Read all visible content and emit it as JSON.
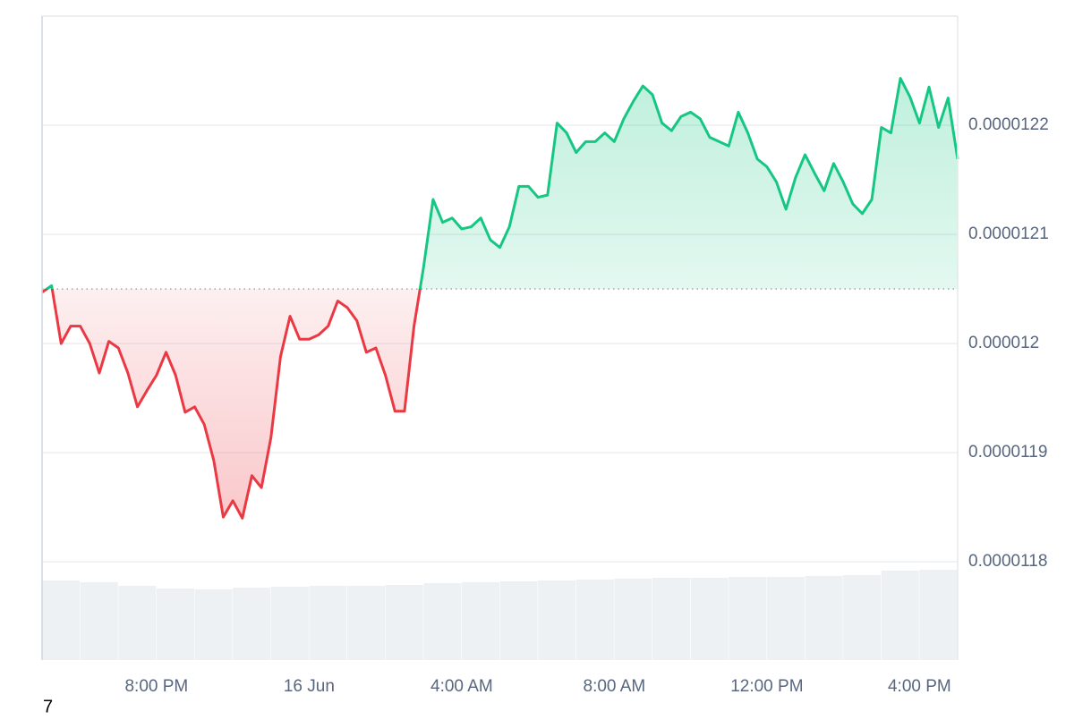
{
  "chart_data": {
    "type": "area",
    "x": [
      17,
      17.25,
      17.5,
      17.75,
      18,
      18.25,
      18.5,
      18.75,
      19,
      19.25,
      19.5,
      19.75,
      20,
      20.25,
      20.5,
      20.75,
      21,
      21.25,
      21.5,
      21.75,
      22,
      22.25,
      22.5,
      22.75,
      23,
      23.25,
      23.5,
      23.75,
      24,
      24.25,
      24.5,
      24.75,
      25,
      25.25,
      25.5,
      25.75,
      26,
      26.25,
      26.5,
      26.75,
      27,
      27.25,
      27.5,
      27.75,
      28,
      28.25,
      28.5,
      28.75,
      29,
      29.25,
      29.5,
      29.75,
      30,
      30.25,
      30.5,
      30.75,
      31,
      31.25,
      31.5,
      31.75,
      32,
      32.25,
      32.5,
      32.75,
      33,
      33.25,
      33.5,
      33.75,
      34,
      34.25,
      34.5,
      34.75,
      35,
      35.25,
      35.5,
      35.75,
      36,
      36.25,
      36.5,
      36.75,
      37,
      37.25,
      37.5,
      37.75,
      38,
      38.25,
      38.5,
      38.75,
      39,
      39.25,
      39.5,
      39.75,
      40,
      40.25,
      40.5,
      40.75,
      41
    ],
    "values": [
      1.2047e-05,
      1.2053e-05,
      1.2e-05,
      1.2016e-05,
      1.2016e-05,
      1.2e-05,
      1.1973e-05,
      1.2002e-05,
      1.1996e-05,
      1.1973e-05,
      1.1942e-05,
      1.1957e-05,
      1.1971e-05,
      1.1992e-05,
      1.1971e-05,
      1.1937e-05,
      1.1942e-05,
      1.1926e-05,
      1.1893e-05,
      1.1841e-05,
      1.1856e-05,
      1.184e-05,
      1.1879e-05,
      1.1868e-05,
      1.1914e-05,
      1.1988e-05,
      1.2025e-05,
      1.2004e-05,
      1.2004e-05,
      1.2008e-05,
      1.2016e-05,
      1.2039e-05,
      1.2033e-05,
      1.2021e-05,
      1.1992e-05,
      1.1996e-05,
      1.1971e-05,
      1.1938e-05,
      1.1938e-05,
      1.2016e-05,
      1.207e-05,
      1.2132e-05,
      1.2111e-05,
      1.2115e-05,
      1.2105e-05,
      1.2107e-05,
      1.2115e-05,
      1.2095e-05,
      1.2088e-05,
      1.2107e-05,
      1.2144e-05,
      1.2144e-05,
      1.2134e-05,
      1.2136e-05,
      1.2202e-05,
      1.2193e-05,
      1.2175e-05,
      1.2185e-05,
      1.2185e-05,
      1.2193e-05,
      1.2185e-05,
      1.2206e-05,
      1.2222e-05,
      1.2236e-05,
      1.2228e-05,
      1.2202e-05,
      1.2195e-05,
      1.2208e-05,
      1.2212e-05,
      1.2206e-05,
      1.2189e-05,
      1.2185e-05,
      1.2181e-05,
      1.2212e-05,
      1.2193e-05,
      1.2169e-05,
      1.2162e-05,
      1.2148e-05,
      1.2123e-05,
      1.2152e-05,
      1.2173e-05,
      1.2156e-05,
      1.214e-05,
      1.2165e-05,
      1.2148e-05,
      1.2128e-05,
      1.2119e-05,
      1.2132e-05,
      1.2198e-05,
      1.2193e-05,
      1.2243e-05,
      1.2226e-05,
      1.2202e-05,
      1.2235e-05,
      1.2198e-05,
      1.2225e-05,
      1.2169e-05
    ],
    "baseline": 1.205e-05,
    "up_color": "#16c784",
    "down_color": "#ea3943",
    "xlim": [
      17,
      41
    ],
    "xticks": [
      {
        "value": 20,
        "label": "8:00 PM"
      },
      {
        "value": 24,
        "label": "16 Jun"
      },
      {
        "value": 28,
        "label": "4:00 AM"
      },
      {
        "value": 32,
        "label": "8:00 AM"
      },
      {
        "value": 36,
        "label": "12:00 PM"
      },
      {
        "value": 40,
        "label": "4:00 PM"
      }
    ],
    "ylim": [
      1.171e-05,
      1.23e-05
    ],
    "yticks": [
      1.18e-05,
      1.19e-05,
      1.2e-05,
      1.21e-05,
      1.22e-05
    ],
    "grid": true,
    "volume": {
      "color": "#eef1f4",
      "ylim": [
        0,
        100
      ],
      "values": [
        89,
        87,
        83,
        80,
        79,
        81,
        82,
        83,
        83,
        84,
        86,
        87,
        88,
        89,
        90,
        91,
        92,
        92,
        93,
        93,
        94,
        95,
        100,
        101
      ]
    },
    "footer_text": "7"
  }
}
